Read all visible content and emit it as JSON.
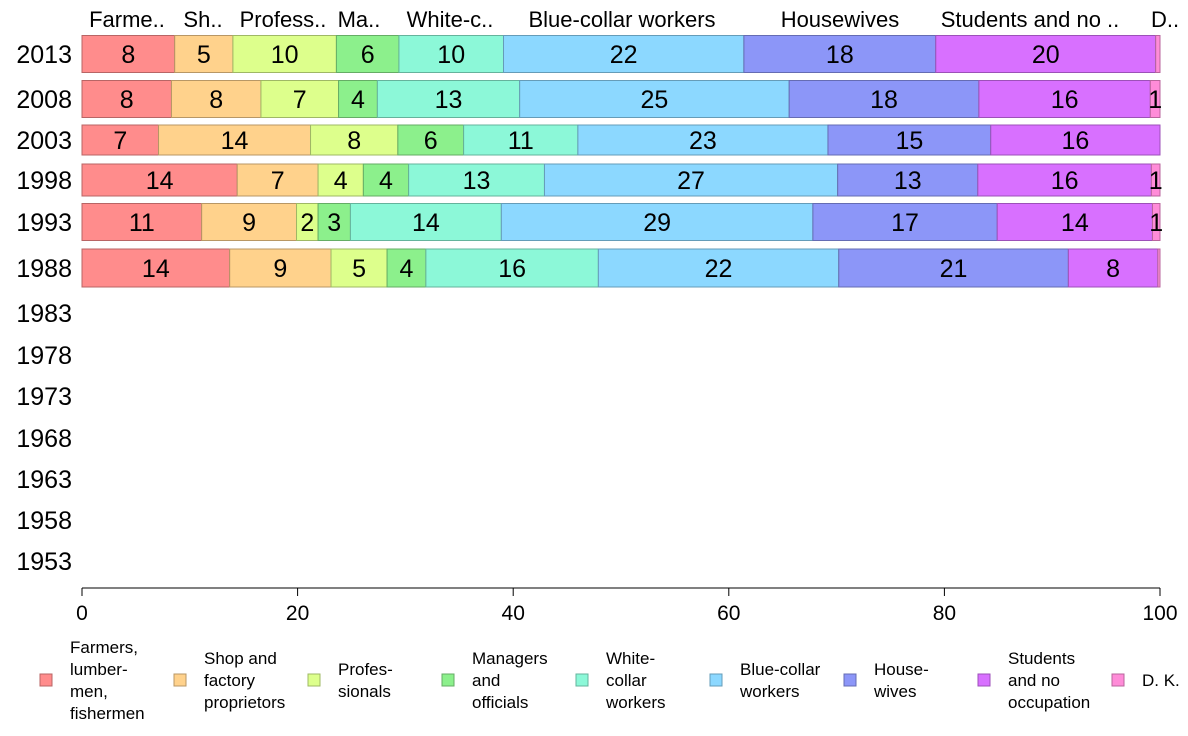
{
  "chart_data": {
    "type": "bar",
    "orientation": "horizontal",
    "stacked": true,
    "xlim": [
      0,
      100
    ],
    "x_ticks": [
      0,
      20,
      40,
      60,
      80,
      100
    ],
    "categories": [
      "2013",
      "2008",
      "2003",
      "1998",
      "1993",
      "1988",
      "1983",
      "1978",
      "1973",
      "1968",
      "1963",
      "1958",
      "1953"
    ],
    "top_labels": [
      "Farme..",
      "Sh..",
      "Profess..",
      "Ma..",
      "White-c..",
      "Blue-collar workers",
      "Housewives",
      "Students and no ..",
      "D.."
    ],
    "legend_position": "bottom",
    "series": [
      {
        "name": "Farmers, lumber-men, fishermen",
        "legend_lines": [
          "Farmers,",
          "lumber-",
          "men,",
          "fishermen"
        ],
        "color": "#ff8c8c",
        "values": [
          8.6,
          8.3,
          7.1,
          14.4,
          11.1,
          13.7,
          null,
          null,
          null,
          null,
          null,
          null,
          null
        ],
        "labels": [
          "8",
          "8",
          "7",
          "14",
          "11",
          "14"
        ]
      },
      {
        "name": "Shop and factory proprietors",
        "legend_lines": [
          "Shop and",
          "factory",
          "proprietors"
        ],
        "color": "#ffd28c",
        "values": [
          5.4,
          8.3,
          14.1,
          7.5,
          8.8,
          9.4,
          null,
          null,
          null,
          null,
          null,
          null,
          null
        ],
        "labels": [
          "5",
          "8",
          "14",
          "7",
          "9",
          "9"
        ]
      },
      {
        "name": "Professionals",
        "legend_lines": [
          "Profes-",
          "sionals"
        ],
        "color": "#ddff8c",
        "values": [
          9.6,
          7.2,
          8.1,
          4.2,
          2.0,
          5.2,
          null,
          null,
          null,
          null,
          null,
          null,
          null
        ],
        "labels": [
          "10",
          "7",
          "8",
          "4",
          "2",
          "5"
        ]
      },
      {
        "name": "Managers and officials",
        "legend_lines": [
          "Managers",
          "and",
          "officials"
        ],
        "color": "#8cf08c",
        "values": [
          5.8,
          3.6,
          6.1,
          4.2,
          3.0,
          3.6,
          null,
          null,
          null,
          null,
          null,
          null,
          null
        ],
        "labels": [
          "6",
          "4",
          "6",
          "4",
          "3",
          "4"
        ]
      },
      {
        "name": "White-collar workers",
        "legend_lines": [
          "White-",
          "collar",
          "workers"
        ],
        "color": "#8cf8d8",
        "values": [
          9.7,
          13.2,
          10.6,
          12.6,
          14.0,
          16.0,
          null,
          null,
          null,
          null,
          null,
          null,
          null
        ],
        "labels": [
          "10",
          "13",
          "11",
          "13",
          "14",
          "16"
        ]
      },
      {
        "name": "Blue-collar workers",
        "legend_lines": [
          "Blue-collar",
          "workers"
        ],
        "color": "#8cd8ff",
        "values": [
          22.3,
          25.0,
          23.2,
          27.2,
          28.9,
          22.3,
          null,
          null,
          null,
          null,
          null,
          null,
          null
        ],
        "labels": [
          "22",
          "25",
          "23",
          "27",
          "29",
          "22"
        ]
      },
      {
        "name": "Housewives",
        "legend_lines": [
          "House-",
          "wives"
        ],
        "color": "#8c96f8",
        "values": [
          17.8,
          17.6,
          15.1,
          13.0,
          17.1,
          21.3,
          null,
          null,
          null,
          null,
          null,
          null,
          null
        ],
        "labels": [
          "18",
          "18",
          "15",
          "13",
          "17",
          "21"
        ]
      },
      {
        "name": "Students and no occupation",
        "legend_lines": [
          "Students",
          "and no",
          "occupation"
        ],
        "color": "#d870ff",
        "values": [
          20.4,
          15.9,
          15.7,
          16.1,
          14.4,
          8.3,
          null,
          null,
          null,
          null,
          null,
          null,
          null
        ],
        "labels": [
          "20",
          "16",
          "16",
          "16",
          "14",
          "8"
        ]
      },
      {
        "name": "D. K.",
        "legend_lines": [
          "D. K."
        ],
        "color": "#ff8cd8",
        "values": [
          0.4,
          0.9,
          0.0,
          0.8,
          0.7,
          0.2,
          null,
          null,
          null,
          null,
          null,
          null,
          null
        ],
        "labels": [
          "",
          "1",
          "",
          "1",
          "1",
          ""
        ]
      }
    ]
  }
}
